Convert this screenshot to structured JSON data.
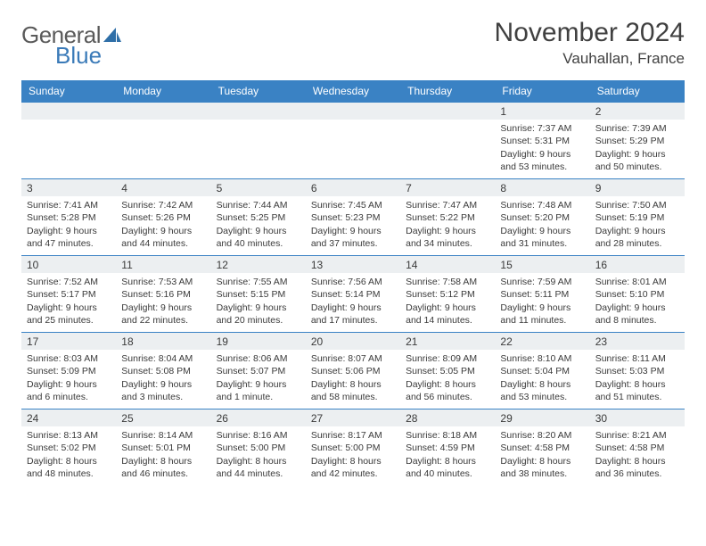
{
  "logo": {
    "part1": "General",
    "part2": "Blue",
    "sail_color": "#2f6fa8"
  },
  "title": "November 2024",
  "location": "Vauhallan, France",
  "header_bg": "#3a82c4",
  "header_fg": "#ffffff",
  "daynum_bg": "#eceff1",
  "rule_color": "#3a82c4",
  "text_color": "#3a3a3a",
  "font_family": "Arial",
  "title_fontsize": 30,
  "location_fontsize": 17,
  "header_fontsize": 12,
  "cell_fontsize": 10.5,
  "columns": [
    "Sunday",
    "Monday",
    "Tuesday",
    "Wednesday",
    "Thursday",
    "Friday",
    "Saturday"
  ],
  "weeks": [
    [
      null,
      null,
      null,
      null,
      null,
      {
        "n": "1",
        "sr": "7:37 AM",
        "ss": "5:31 PM",
        "dl": "9 hours and 53 minutes."
      },
      {
        "n": "2",
        "sr": "7:39 AM",
        "ss": "5:29 PM",
        "dl": "9 hours and 50 minutes."
      }
    ],
    [
      {
        "n": "3",
        "sr": "7:41 AM",
        "ss": "5:28 PM",
        "dl": "9 hours and 47 minutes."
      },
      {
        "n": "4",
        "sr": "7:42 AM",
        "ss": "5:26 PM",
        "dl": "9 hours and 44 minutes."
      },
      {
        "n": "5",
        "sr": "7:44 AM",
        "ss": "5:25 PM",
        "dl": "9 hours and 40 minutes."
      },
      {
        "n": "6",
        "sr": "7:45 AM",
        "ss": "5:23 PM",
        "dl": "9 hours and 37 minutes."
      },
      {
        "n": "7",
        "sr": "7:47 AM",
        "ss": "5:22 PM",
        "dl": "9 hours and 34 minutes."
      },
      {
        "n": "8",
        "sr": "7:48 AM",
        "ss": "5:20 PM",
        "dl": "9 hours and 31 minutes."
      },
      {
        "n": "9",
        "sr": "7:50 AM",
        "ss": "5:19 PM",
        "dl": "9 hours and 28 minutes."
      }
    ],
    [
      {
        "n": "10",
        "sr": "7:52 AM",
        "ss": "5:17 PM",
        "dl": "9 hours and 25 minutes."
      },
      {
        "n": "11",
        "sr": "7:53 AM",
        "ss": "5:16 PM",
        "dl": "9 hours and 22 minutes."
      },
      {
        "n": "12",
        "sr": "7:55 AM",
        "ss": "5:15 PM",
        "dl": "9 hours and 20 minutes."
      },
      {
        "n": "13",
        "sr": "7:56 AM",
        "ss": "5:14 PM",
        "dl": "9 hours and 17 minutes."
      },
      {
        "n": "14",
        "sr": "7:58 AM",
        "ss": "5:12 PM",
        "dl": "9 hours and 14 minutes."
      },
      {
        "n": "15",
        "sr": "7:59 AM",
        "ss": "5:11 PM",
        "dl": "9 hours and 11 minutes."
      },
      {
        "n": "16",
        "sr": "8:01 AM",
        "ss": "5:10 PM",
        "dl": "9 hours and 8 minutes."
      }
    ],
    [
      {
        "n": "17",
        "sr": "8:03 AM",
        "ss": "5:09 PM",
        "dl": "9 hours and 6 minutes."
      },
      {
        "n": "18",
        "sr": "8:04 AM",
        "ss": "5:08 PM",
        "dl": "9 hours and 3 minutes."
      },
      {
        "n": "19",
        "sr": "8:06 AM",
        "ss": "5:07 PM",
        "dl": "9 hours and 1 minute."
      },
      {
        "n": "20",
        "sr": "8:07 AM",
        "ss": "5:06 PM",
        "dl": "8 hours and 58 minutes."
      },
      {
        "n": "21",
        "sr": "8:09 AM",
        "ss": "5:05 PM",
        "dl": "8 hours and 56 minutes."
      },
      {
        "n": "22",
        "sr": "8:10 AM",
        "ss": "5:04 PM",
        "dl": "8 hours and 53 minutes."
      },
      {
        "n": "23",
        "sr": "8:11 AM",
        "ss": "5:03 PM",
        "dl": "8 hours and 51 minutes."
      }
    ],
    [
      {
        "n": "24",
        "sr": "8:13 AM",
        "ss": "5:02 PM",
        "dl": "8 hours and 48 minutes."
      },
      {
        "n": "25",
        "sr": "8:14 AM",
        "ss": "5:01 PM",
        "dl": "8 hours and 46 minutes."
      },
      {
        "n": "26",
        "sr": "8:16 AM",
        "ss": "5:00 PM",
        "dl": "8 hours and 44 minutes."
      },
      {
        "n": "27",
        "sr": "8:17 AM",
        "ss": "5:00 PM",
        "dl": "8 hours and 42 minutes."
      },
      {
        "n": "28",
        "sr": "8:18 AM",
        "ss": "4:59 PM",
        "dl": "8 hours and 40 minutes."
      },
      {
        "n": "29",
        "sr": "8:20 AM",
        "ss": "4:58 PM",
        "dl": "8 hours and 38 minutes."
      },
      {
        "n": "30",
        "sr": "8:21 AM",
        "ss": "4:58 PM",
        "dl": "8 hours and 36 minutes."
      }
    ]
  ],
  "labels": {
    "sunrise": "Sunrise:",
    "sunset": "Sunset:",
    "daylight": "Daylight:"
  }
}
